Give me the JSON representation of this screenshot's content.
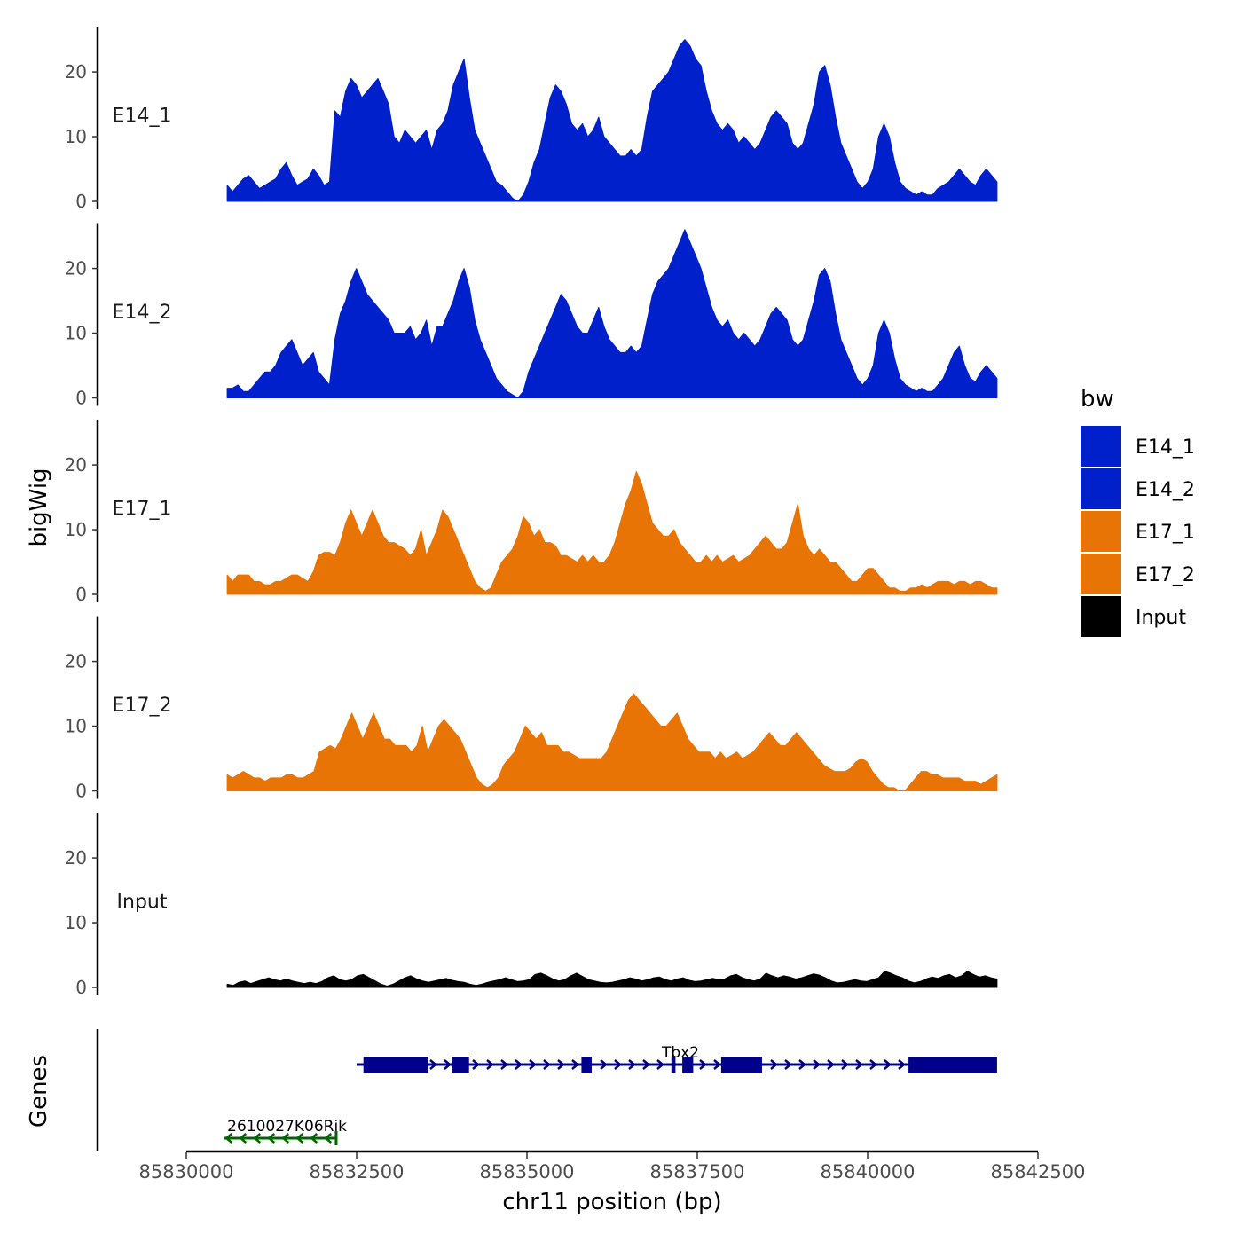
{
  "chart_data": {
    "type": "area",
    "ylabel": "bigWig",
    "xlabel": "chr11 position (bp)",
    "genes_label": "Genes",
    "xlim": [
      85830000,
      85842500
    ],
    "ylim": [
      0,
      27
    ],
    "y_ticks": [
      0,
      10,
      20
    ],
    "x_ticks": [
      85830000,
      85832500,
      85835000,
      85837500,
      85840000,
      85842500
    ],
    "x_tick_labels": [
      "85830000",
      "85832500",
      "85835000",
      "85837500",
      "85840000",
      "85842500"
    ],
    "track_start": 85830600,
    "track_end": 85841900,
    "legend": {
      "title": "bw",
      "entries": [
        {
          "label": "E14_1",
          "color": "#0020CC"
        },
        {
          "label": "E14_2",
          "color": "#0020CC"
        },
        {
          "label": "E17_1",
          "color": "#E87405"
        },
        {
          "label": "E17_2",
          "color": "#E87405"
        },
        {
          "label": "Input",
          "color": "#000000"
        }
      ]
    },
    "tracks": [
      {
        "name": "E14_1",
        "color": "#0020CC",
        "values": [
          2.5,
          1.5,
          2.5,
          3.5,
          4,
          3,
          2,
          2.5,
          3,
          3.5,
          5,
          6,
          4,
          2.5,
          3,
          3.5,
          5,
          4,
          2.5,
          3,
          14,
          13,
          17,
          19,
          18,
          16,
          17,
          18,
          19,
          17,
          15,
          10,
          9,
          11,
          10,
          9,
          10,
          11,
          8,
          11,
          12,
          14,
          18,
          20,
          22,
          16,
          11,
          9,
          7,
          5,
          3,
          2.5,
          1.5,
          0.5,
          0,
          1,
          3,
          6,
          8,
          12,
          16,
          18,
          17,
          15,
          12,
          11,
          12,
          10,
          11,
          13,
          10,
          9,
          8,
          7,
          7,
          8,
          7,
          8,
          13,
          17,
          18,
          19,
          20,
          22,
          24,
          25,
          24,
          22,
          21,
          17,
          14,
          12,
          11,
          12,
          11,
          9,
          10,
          9,
          8,
          9,
          11,
          13,
          14,
          13,
          12,
          9,
          8,
          9,
          12,
          15,
          20,
          21,
          18,
          13,
          9,
          7,
          5,
          3,
          2,
          3,
          5,
          10,
          12,
          10,
          6,
          3,
          2,
          1.5,
          1,
          1.5,
          1,
          1,
          2,
          2.5,
          3,
          4,
          5,
          4,
          3,
          2.5,
          4,
          5,
          4,
          3
        ]
      },
      {
        "name": "E14_2",
        "color": "#0020CC",
        "values": [
          1.5,
          1.5,
          2,
          1,
          1,
          2,
          3,
          4,
          4,
          5,
          7,
          8,
          9,
          7,
          5,
          6,
          7,
          4,
          3,
          2,
          9,
          13,
          15,
          18,
          20,
          18,
          16,
          15,
          14,
          13,
          12,
          10,
          10,
          10,
          11,
          9,
          10,
          12,
          8,
          11,
          11,
          13,
          15,
          18,
          20,
          17,
          12,
          9,
          7,
          5,
          3,
          2,
          1,
          0.5,
          0,
          1,
          4,
          6,
          8,
          10,
          12,
          14,
          16,
          15,
          13,
          11,
          10,
          10,
          12,
          14,
          11,
          9,
          8,
          7,
          7,
          8,
          7,
          8,
          12,
          16,
          18,
          19,
          20,
          22,
          24,
          26,
          24,
          22,
          20,
          17,
          14,
          12,
          11,
          12,
          10,
          9,
          10,
          9,
          8,
          9,
          11,
          13,
          14,
          13,
          12,
          9,
          8,
          9,
          12,
          15,
          19,
          20,
          18,
          13,
          9,
          7,
          5,
          3,
          2,
          3,
          5,
          10,
          12,
          10,
          6,
          3,
          2,
          1.5,
          1,
          1.5,
          1,
          1,
          2,
          3,
          5,
          7,
          8,
          5,
          3,
          2.5,
          4,
          5,
          4,
          3
        ]
      },
      {
        "name": "E17_1",
        "color": "#E87405",
        "values": [
          3,
          2,
          3,
          3,
          3,
          2,
          2,
          1.5,
          1.5,
          2,
          2,
          2.5,
          3,
          3,
          2.5,
          2,
          3.5,
          6,
          6.5,
          6.5,
          6,
          8,
          11,
          13,
          11,
          9,
          11,
          13,
          11,
          9,
          8,
          8,
          7.5,
          7,
          6,
          7,
          10,
          6,
          8,
          10,
          13,
          12,
          10,
          8,
          6,
          4,
          2,
          1,
          0.5,
          1,
          3,
          5,
          6,
          7,
          9,
          12,
          11,
          9,
          10,
          8,
          8,
          7.5,
          6,
          6,
          5.5,
          5,
          6,
          5,
          6,
          5,
          5,
          6,
          8,
          11,
          14,
          16,
          19,
          17,
          14,
          11,
          10,
          9,
          9,
          10,
          8,
          7,
          6,
          5,
          5,
          6,
          5,
          6,
          5,
          5.5,
          6,
          5,
          5.5,
          6,
          7,
          8,
          9,
          8,
          7,
          7,
          8,
          11,
          14,
          9,
          7,
          6,
          7,
          6,
          5,
          5,
          4,
          3,
          2,
          2,
          3,
          4,
          4,
          3,
          2,
          1,
          1,
          0.5,
          0.5,
          1,
          1,
          1.5,
          1,
          1.5,
          2,
          2,
          2,
          1.5,
          2,
          2,
          1.5,
          2,
          2,
          1.5,
          1,
          1
        ]
      },
      {
        "name": "E17_2",
        "color": "#E87405",
        "values": [
          2.5,
          2,
          2.5,
          3,
          2.5,
          2,
          2,
          1.5,
          2,
          2,
          2,
          2.5,
          2.5,
          2,
          2,
          2.5,
          3,
          6,
          6.5,
          7,
          6.5,
          8,
          10,
          12,
          10,
          8,
          10,
          12,
          10,
          8,
          8,
          7,
          7,
          7,
          6,
          7,
          10,
          6,
          8,
          10,
          11,
          10,
          9,
          8,
          6,
          4,
          2,
          1,
          0.5,
          1,
          2,
          4,
          5,
          6,
          8,
          10,
          9,
          8,
          9,
          7,
          7,
          7,
          6,
          6,
          5.5,
          5,
          5,
          5,
          5,
          5,
          6,
          8,
          10,
          12,
          14,
          15,
          14,
          13,
          12,
          11,
          10,
          10,
          11,
          12,
          10,
          8,
          7,
          6,
          6,
          6,
          5,
          6,
          5,
          5.5,
          6,
          5,
          5.5,
          6,
          7,
          8,
          9,
          8,
          7,
          7,
          8,
          9,
          8,
          7,
          6,
          5,
          4,
          3.5,
          3,
          3,
          3,
          3.5,
          4.5,
          5,
          4.5,
          3,
          2,
          1,
          0.5,
          0.5,
          0,
          0,
          1,
          2,
          3,
          3,
          2.5,
          2.5,
          2,
          2,
          2,
          2,
          1.5,
          1.5,
          1.5,
          1,
          1.5,
          2,
          2.5
        ]
      },
      {
        "name": "Input",
        "color": "#000000",
        "values": [
          0.5,
          0.3,
          0.8,
          1,
          0.6,
          0.9,
          1.2,
          1.5,
          1.2,
          1,
          1.3,
          1,
          0.8,
          0.6,
          0.8,
          0.6,
          0.9,
          1.5,
          1.8,
          1.2,
          1,
          1.2,
          1.8,
          2,
          1.5,
          1,
          0.5,
          0.2,
          0.5,
          1,
          1.5,
          1.8,
          1.3,
          1,
          0.8,
          1,
          1.2,
          1.4,
          1.1,
          0.9,
          0.8,
          0.5,
          0.3,
          0.5,
          0.8,
          1,
          1.2,
          1.5,
          1.2,
          0.9,
          1,
          1.2,
          2,
          2.2,
          1.8,
          1.3,
          1,
          1.2,
          1.8,
          2.2,
          1.7,
          1.2,
          1,
          0.8,
          0.7,
          0.8,
          1,
          1.2,
          1.5,
          1.3,
          1,
          1.2,
          1.5,
          1.6,
          1.2,
          1,
          1.3,
          1.5,
          1.1,
          0.9,
          1,
          1.2,
          1.4,
          1.2,
          1.3,
          1.8,
          2,
          1.5,
          1.2,
          1,
          1.3,
          2.2,
          1.8,
          1.5,
          1.8,
          1.6,
          1.3,
          1.5,
          1.8,
          2.1,
          1.9,
          1.5,
          1,
          0.7,
          0.8,
          1,
          1.2,
          1,
          0.9,
          1.2,
          1.5,
          2.5,
          2.2,
          1.8,
          1.5,
          1,
          0.7,
          0.9,
          1.3,
          1.6,
          1.4,
          1.8,
          2,
          1.5,
          1.8,
          2.5,
          2,
          1.6,
          1.8,
          1.5,
          1.3
        ]
      }
    ],
    "genes": [
      {
        "name": "Tbx2",
        "strand": "+",
        "color": "#00008B",
        "start": 85832500,
        "end": 85841900,
        "exons": [
          [
            85832600,
            85833550
          ],
          [
            85833900,
            85834150
          ],
          [
            85835800,
            85835950
          ],
          [
            85837120,
            85837180
          ],
          [
            85837280,
            85837440
          ],
          [
            85837850,
            85838450
          ],
          [
            85840600,
            85841900
          ]
        ]
      },
      {
        "name": "2610027K06Rik",
        "strand": "-",
        "color": "#006400",
        "start": 85830550,
        "end": 85832200,
        "exons": []
      }
    ]
  }
}
